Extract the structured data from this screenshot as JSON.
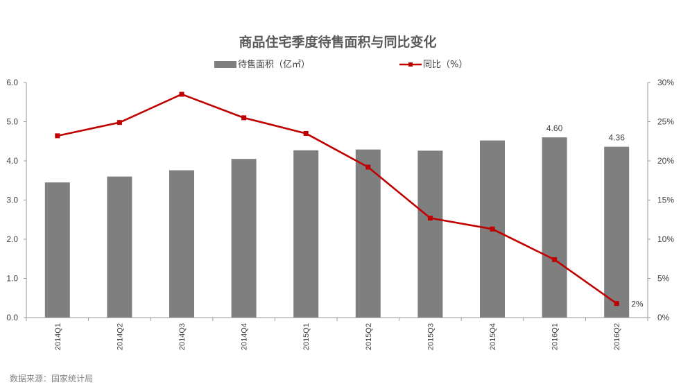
{
  "chart_data": {
    "type": "bar",
    "title": "商品住宅季度待售面积与同比变化",
    "categories": [
      "2014Q1",
      "2014Q2",
      "2014Q3",
      "2014Q4",
      "2015Q1",
      "2015Q2",
      "2015Q3",
      "2015Q4",
      "2016Q1",
      "2016Q2"
    ],
    "series": [
      {
        "name": "待售面积（亿㎡）",
        "type": "bar",
        "axis": "left",
        "color": "#7f7f7f",
        "values": [
          3.45,
          3.6,
          3.76,
          4.05,
          4.27,
          4.29,
          4.26,
          4.52,
          4.6,
          4.36
        ],
        "data_labels": [
          null,
          null,
          null,
          null,
          null,
          null,
          null,
          null,
          "4.60",
          "4.36"
        ]
      },
      {
        "name": "同比（%）",
        "type": "line",
        "axis": "right",
        "color": "#c00000",
        "values": [
          23.2,
          24.9,
          28.5,
          25.5,
          23.5,
          19.2,
          12.7,
          11.3,
          7.4,
          1.8
        ],
        "data_labels": [
          null,
          null,
          null,
          null,
          null,
          null,
          null,
          null,
          null,
          "2%"
        ]
      }
    ],
    "y_left": {
      "min": 0,
      "max": 6,
      "step": 1,
      "tick_labels": [
        "0.0",
        "1.0",
        "2.0",
        "3.0",
        "4.0",
        "5.0",
        "6.0"
      ]
    },
    "y_right": {
      "min": 0,
      "max": 30,
      "step": 5,
      "tick_labels": [
        "0%",
        "5%",
        "10%",
        "15%",
        "20%",
        "25%",
        "30%"
      ]
    },
    "grid": false,
    "legend_position": "top-center",
    "source": "数据来源：国家统计局"
  }
}
